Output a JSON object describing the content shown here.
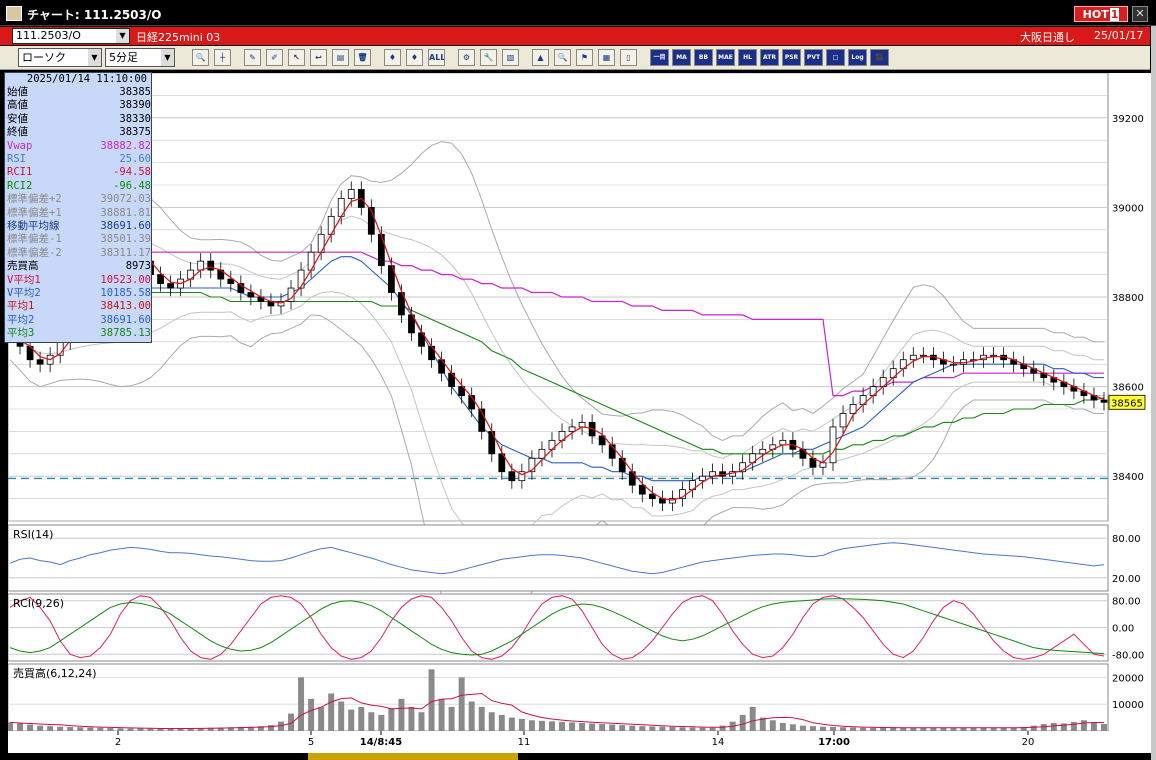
{
  "window": {
    "title": "チャート: 111.2503/O",
    "hot_label": "HOT",
    "hot_number": "1",
    "close_glyph": "✕"
  },
  "infobar": {
    "symbol_code": "111.2503/O",
    "symbol_name": "日経225mini 03",
    "session": "大阪日通し",
    "date": "25/01/17"
  },
  "toolbar": {
    "chart_type": "ローソク",
    "interval": "5分足",
    "buttons": [
      {
        "name": "zoom-icon",
        "glyph": "🔍"
      },
      {
        "name": "cursor-icon",
        "glyph": "┼"
      },
      {
        "name": "pen-icon",
        "glyph": "✎"
      },
      {
        "name": "brush-icon",
        "glyph": "✐"
      },
      {
        "name": "pointer-icon",
        "glyph": "↖"
      },
      {
        "name": "curve-icon",
        "glyph": "↩"
      },
      {
        "name": "note-icon",
        "glyph": "▤"
      },
      {
        "name": "trash-icon",
        "glyph": "🗑"
      },
      {
        "name": "candle-icon",
        "glyph": "♦"
      },
      {
        "name": "candle2-icon",
        "glyph": "♦"
      },
      {
        "name": "all-icon",
        "glyph": "ALL"
      },
      {
        "name": "settings-icon",
        "glyph": "⚙"
      },
      {
        "name": "wrench-icon",
        "glyph": "🔧"
      },
      {
        "name": "palette-icon",
        "glyph": "▧"
      },
      {
        "name": "chart-icon",
        "glyph": "▲"
      },
      {
        "name": "search-chart-icon",
        "glyph": "🔍"
      },
      {
        "name": "flag-icon",
        "glyph": "⚑"
      },
      {
        "name": "grid-icon",
        "glyph": "▦"
      },
      {
        "name": "blank-icon",
        "glyph": "▯"
      }
    ],
    "indicators": [
      "一目",
      "MA",
      "BB",
      "MAE",
      "HL",
      "ATR",
      "PSR",
      "PVT",
      "□",
      "Log",
      "⬛"
    ]
  },
  "ohlc": {
    "datetime": "2025/01/14 11:10:00",
    "rows": [
      {
        "label": "始値",
        "value": "38385",
        "color": "#000000"
      },
      {
        "label": "高値",
        "value": "38390",
        "color": "#000000"
      },
      {
        "label": "安値",
        "value": "38330",
        "color": "#000000"
      },
      {
        "label": "終値",
        "value": "38375",
        "color": "#000000"
      },
      {
        "label": "Vwap",
        "value": "38882.82",
        "color": "#cc22cc"
      },
      {
        "label": "RSI",
        "value": "25.60",
        "color": "#4a78c8"
      },
      {
        "label": "RCI1",
        "value": "-94.58",
        "color": "#cc1144"
      },
      {
        "label": "RCI2",
        "value": "-96.48",
        "color": "#118811"
      },
      {
        "label": "標準偏差+2",
        "value": "39072.03",
        "color": "#8a8a8a"
      },
      {
        "label": "標準偏差+1",
        "value": "38881.81",
        "color": "#8a8a8a"
      },
      {
        "label": "移動平均線",
        "value": "38691.60",
        "color": "#1a3b8c"
      },
      {
        "label": "標準偏差-1",
        "value": "38501.39",
        "color": "#8a8a8a"
      },
      {
        "label": "標準偏差-2",
        "value": "38311.17",
        "color": "#8a8a8a"
      },
      {
        "label": "売買高",
        "value": "8973",
        "color": "#000000"
      },
      {
        "label": "V平均1",
        "value": "10523.00",
        "color": "#cc1144"
      },
      {
        "label": "V平均2",
        "value": "10185.58",
        "color": "#2a5fc4"
      },
      {
        "label": "平均1",
        "value": "38413.00",
        "color": "#cc1111"
      },
      {
        "label": "平均2",
        "value": "38691.60",
        "color": "#2a5fc4"
      },
      {
        "label": "平均3",
        "value": "38785.13",
        "color": "#118811"
      }
    ]
  },
  "panels": {
    "rsi_title": "RSI(14)",
    "rci_title": "RCI(9,26)",
    "vol_title": "売買高(6,12,24)"
  },
  "chart_data": [
    {
      "type": "line",
      "title": "",
      "ylim": [
        38300,
        39300
      ],
      "price_ticks": [
        "39200",
        "39000",
        "38800",
        "38600",
        "38400"
      ],
      "current_price": "38565",
      "reference_price": 38395,
      "x_ticks": [
        "2",
        "5",
        "14/8:45",
        "11",
        "14",
        "17:00",
        "20"
      ],
      "close": [
        38720,
        38690,
        38660,
        38650,
        38670,
        38700,
        38740,
        38780,
        38820,
        38860,
        38900,
        38920,
        38910,
        38880,
        38850,
        38830,
        38820,
        38840,
        38860,
        38880,
        38860,
        38840,
        38830,
        38810,
        38800,
        38790,
        38780,
        38790,
        38820,
        38860,
        38900,
        38940,
        38980,
        39020,
        39040,
        39000,
        38940,
        38870,
        38810,
        38760,
        38720,
        38690,
        38660,
        38630,
        38600,
        38580,
        38550,
        38500,
        38450,
        38410,
        38390,
        38410,
        38440,
        38460,
        38480,
        38500,
        38510,
        38520,
        38490,
        38470,
        38440,
        38410,
        38380,
        38360,
        38350,
        38340,
        38350,
        38370,
        38390,
        38400,
        38410,
        38400,
        38410,
        38430,
        38450,
        38460,
        38470,
        38480,
        38460,
        38440,
        38420,
        38430,
        38510,
        38540,
        38560,
        38580,
        38600,
        38620,
        38640,
        38660,
        38670,
        38670,
        38660,
        38650,
        38650,
        38660,
        38660,
        38670,
        38670,
        38660,
        38650,
        38640,
        38630,
        38620,
        38610,
        38600,
        38590,
        38580,
        38570,
        38565
      ],
      "ma2": [
        38780,
        38770,
        38760,
        38750,
        38740,
        38740,
        38750,
        38760,
        38770,
        38780,
        38790,
        38800,
        38810,
        38820,
        38820,
        38820,
        38820,
        38820,
        38820,
        38820,
        38820,
        38820,
        38820,
        38810,
        38800,
        38800,
        38800,
        38800,
        38810,
        38820,
        38840,
        38860,
        38880,
        38890,
        38890,
        38880,
        38860,
        38840,
        38820,
        38790,
        38760,
        38720,
        38680,
        38640,
        38600,
        38570,
        38540,
        38510,
        38490,
        38470,
        38460,
        38450,
        38440,
        38440,
        38430,
        38430,
        38430,
        38430,
        38420,
        38420,
        38410,
        38410,
        38400,
        38400,
        38390,
        38390,
        38390,
        38390,
        38390,
        38400,
        38400,
        38400,
        38410,
        38410,
        38420,
        38430,
        38440,
        38450,
        38450,
        38460,
        38460,
        38470,
        38480,
        38490,
        38500,
        38510,
        38530,
        38550,
        38570,
        38590,
        38610,
        38620,
        38630,
        38640,
        38650,
        38650,
        38650,
        38650,
        38650,
        38650,
        38650,
        38650,
        38650,
        38650,
        38640,
        38640,
        38630,
        38630,
        38620,
        38620
      ],
      "ma3": [
        38860,
        38850,
        38840,
        38830,
        38820,
        38810,
        38800,
        38800,
        38800,
        38810,
        38810,
        38810,
        38810,
        38810,
        38810,
        38810,
        38810,
        38810,
        38810,
        38810,
        38800,
        38800,
        38790,
        38790,
        38790,
        38790,
        38790,
        38790,
        38790,
        38790,
        38790,
        38790,
        38790,
        38790,
        38790,
        38790,
        38790,
        38780,
        38780,
        38780,
        38770,
        38760,
        38750,
        38740,
        38730,
        38720,
        38710,
        38700,
        38680,
        38670,
        38660,
        38640,
        38630,
        38620,
        38610,
        38600,
        38590,
        38580,
        38570,
        38560,
        38550,
        38540,
        38530,
        38520,
        38510,
        38500,
        38490,
        38480,
        38470,
        38460,
        38460,
        38450,
        38450,
        38450,
        38450,
        38450,
        38450,
        38450,
        38450,
        38450,
        38450,
        38450,
        38460,
        38460,
        38470,
        38470,
        38480,
        38480,
        38490,
        38490,
        38500,
        38510,
        38510,
        38520,
        38520,
        38530,
        38530,
        38540,
        38540,
        38540,
        38550,
        38550,
        38550,
        38560,
        38560,
        38560,
        38560,
        38570,
        38570,
        38575
      ],
      "vwap": [
        38900,
        38900,
        38900,
        38900,
        38900,
        38900,
        38900,
        38900,
        38900,
        38900,
        38900,
        38900,
        38900,
        38900,
        38900,
        38900,
        38900,
        38900,
        38900,
        38900,
        38900,
        38900,
        38900,
        38900,
        38900,
        38900,
        38900,
        38900,
        38900,
        38900,
        38900,
        38900,
        38900,
        38900,
        38900,
        38900,
        38890,
        38880,
        38880,
        38870,
        38870,
        38860,
        38860,
        38850,
        38850,
        38840,
        38840,
        38830,
        38830,
        38820,
        38820,
        38820,
        38810,
        38810,
        38810,
        38800,
        38800,
        38800,
        38790,
        38790,
        38790,
        38790,
        38780,
        38780,
        38780,
        38770,
        38770,
        38770,
        38770,
        38760,
        38760,
        38760,
        38760,
        38760,
        38750,
        38750,
        38750,
        38750,
        38750,
        38750,
        38750,
        38750,
        38580,
        38580,
        38590,
        38590,
        38600,
        38600,
        38610,
        38610,
        38610,
        38620,
        38620,
        38620,
        38620,
        38630,
        38630,
        38630,
        38630,
        38630,
        38630,
        38630,
        38630,
        38630,
        38630,
        38630,
        38630,
        38630,
        38630,
        38630
      ],
      "rsi": [
        42,
        48,
        50,
        46,
        44,
        40,
        46,
        50,
        55,
        58,
        62,
        64,
        66,
        65,
        63,
        60,
        58,
        58,
        57,
        55,
        53,
        52,
        50,
        48,
        46,
        45,
        45,
        46,
        50,
        55,
        60,
        64,
        66,
        62,
        58,
        54,
        50,
        45,
        40,
        36,
        32,
        30,
        28,
        26,
        28,
        32,
        36,
        40,
        44,
        48,
        50,
        52,
        54,
        55,
        55,
        54,
        52,
        50,
        46,
        42,
        38,
        34,
        30,
        28,
        26,
        28,
        32,
        36,
        40,
        44,
        46,
        48,
        50,
        52,
        54,
        55,
        56,
        56,
        55,
        53,
        52,
        54,
        60,
        64,
        66,
        68,
        70,
        72,
        73,
        72,
        70,
        68,
        66,
        64,
        62,
        60,
        58,
        56,
        55,
        54,
        53,
        52,
        50,
        48,
        46,
        44,
        42,
        40,
        38,
        40
      ],
      "rci1": [
        60,
        80,
        90,
        60,
        20,
        -40,
        -80,
        -90,
        -85,
        -60,
        -20,
        40,
        80,
        95,
        90,
        60,
        20,
        -30,
        -70,
        -90,
        -95,
        -80,
        -50,
        -10,
        30,
        70,
        90,
        95,
        90,
        70,
        30,
        -20,
        -60,
        -85,
        -95,
        -90,
        -70,
        -30,
        20,
        60,
        85,
        95,
        90,
        60,
        20,
        -30,
        -70,
        -90,
        -95,
        -85,
        -60,
        -20,
        30,
        70,
        90,
        95,
        85,
        50,
        0,
        -50,
        -80,
        -95,
        -90,
        -70,
        -40,
        0,
        40,
        75,
        90,
        95,
        80,
        40,
        -10,
        -50,
        -80,
        -90,
        -85,
        -60,
        -20,
        30,
        70,
        90,
        95,
        85,
        60,
        30,
        -10,
        -50,
        -80,
        -90,
        -70,
        -30,
        20,
        60,
        80,
        70,
        40,
        0,
        -40,
        -70,
        -90,
        -95,
        -90,
        -80,
        -60,
        -40,
        -20,
        -50,
        -80,
        -85
      ],
      "rci2": [
        -60,
        -70,
        -75,
        -70,
        -60,
        -40,
        -20,
        0,
        20,
        40,
        60,
        70,
        75,
        72,
        65,
        55,
        40,
        20,
        0,
        -20,
        -40,
        -55,
        -65,
        -70,
        -68,
        -60,
        -45,
        -25,
        -5,
        15,
        35,
        55,
        70,
        78,
        80,
        75,
        65,
        50,
        30,
        10,
        -10,
        -30,
        -50,
        -65,
        -75,
        -80,
        -82,
        -80,
        -70,
        -55,
        -40,
        -20,
        0,
        20,
        40,
        55,
        65,
        70,
        68,
        60,
        48,
        35,
        20,
        5,
        -10,
        -25,
        -35,
        -40,
        -35,
        -25,
        -10,
        5,
        20,
        35,
        50,
        62,
        70,
        75,
        78,
        80,
        82,
        85,
        86,
        86,
        85,
        84,
        82,
        80,
        75,
        70,
        60,
        50,
        40,
        30,
        20,
        10,
        0,
        -10,
        -20,
        -30,
        -40,
        -50,
        -60,
        -65,
        -68,
        -70,
        -72,
        -74,
        -76,
        -78
      ],
      "volume": [
        3200,
        2800,
        2400,
        2000,
        1800,
        1600,
        1500,
        1400,
        1300,
        1200,
        1100,
        1000,
        900,
        900,
        900,
        900,
        900,
        1000,
        1000,
        1100,
        1200,
        1300,
        1400,
        1500,
        1600,
        1800,
        2200,
        3500,
        6500,
        20000,
        12000,
        9000,
        14000,
        11000,
        8000,
        9000,
        7000,
        6000,
        8500,
        12000,
        9000,
        7000,
        23000,
        12000,
        9000,
        20000,
        11000,
        9000,
        7000,
        6000,
        5000,
        4500,
        4000,
        3800,
        3600,
        3400,
        3200,
        3000,
        2800,
        2600,
        2400,
        2200,
        2000,
        1800,
        1700,
        1600,
        1500,
        1400,
        1300,
        1200,
        1200,
        2000,
        3500,
        6000,
        9000,
        5000,
        4000,
        3000,
        2500,
        2000,
        1800,
        1600,
        1500,
        1400,
        1300,
        1200,
        1200,
        1200,
        1200,
        1200,
        1200,
        1200,
        1200,
        1200,
        1200,
        1200,
        1200,
        1200,
        1200,
        1200,
        1200,
        1500,
        2000,
        2600,
        3000,
        2800,
        3400,
        4000,
        3200,
        2600
      ],
      "rsi_ticks": [
        "80.00",
        "20.00"
      ],
      "rci_ticks": [
        "80.00",
        "0.00",
        "-80.00"
      ],
      "vol_ticks": [
        "20000",
        "10000"
      ]
    }
  ]
}
